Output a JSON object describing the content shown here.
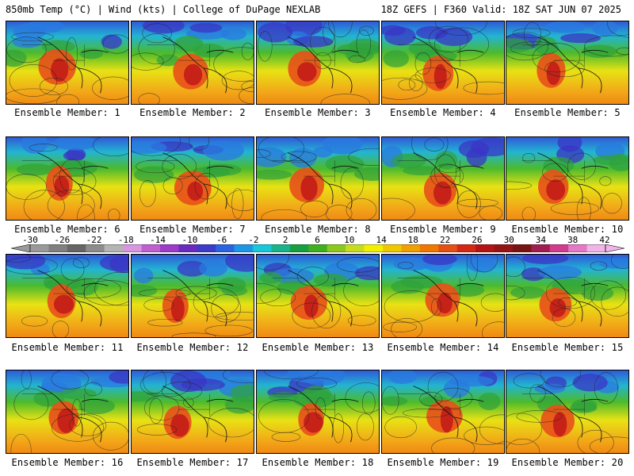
{
  "header": {
    "left": "850mb Temp (°C) | Wind (kts) | College of DuPage NEXLAB",
    "right": "18Z GEFS | F360 Valid: 18Z SAT JUN 07 2025"
  },
  "members": [
    {
      "label": "Ensemble Member: 1"
    },
    {
      "label": "Ensemble Member: 2"
    },
    {
      "label": "Ensemble Member: 3"
    },
    {
      "label": "Ensemble Member: 4"
    },
    {
      "label": "Ensemble Member: 5"
    },
    {
      "label": "Ensemble Member: 6"
    },
    {
      "label": "Ensemble Member: 7"
    },
    {
      "label": "Ensemble Member: 8"
    },
    {
      "label": "Ensemble Member: 9"
    },
    {
      "label": "Ensemble Member: 10"
    },
    {
      "label": "Ensemble Member: 11"
    },
    {
      "label": "Ensemble Member: 12"
    },
    {
      "label": "Ensemble Member: 13"
    },
    {
      "label": "Ensemble Member: 14"
    },
    {
      "label": "Ensemble Member: 15"
    },
    {
      "label": "Ensemble Member: 16"
    },
    {
      "label": "Ensemble Member: 17"
    },
    {
      "label": "Ensemble Member: 18"
    },
    {
      "label": "Ensemble Member: 19"
    },
    {
      "label": "Ensemble Member: 20"
    }
  ],
  "colorbar": {
    "ticks": [
      "-30",
      "-26",
      "-22",
      "-18",
      "-14",
      "-10",
      "-6",
      "-2",
      "2",
      "6",
      "10",
      "14",
      "18",
      "22",
      "26",
      "30",
      "34",
      "38",
      "42"
    ],
    "colors": [
      "#9a9a9a",
      "#808080",
      "#666666",
      "#8c8c8c",
      "#b4b4b4",
      "#d896e0",
      "#c060d0",
      "#9c3cc8",
      "#6a2cc0",
      "#3c3cc8",
      "#2a64e0",
      "#1e96e6",
      "#18c8d8",
      "#1ab48c",
      "#18a040",
      "#40b020",
      "#8cc81e",
      "#c8dc1e",
      "#f0f000",
      "#f0c800",
      "#f0a000",
      "#f07800",
      "#e65014",
      "#d22814",
      "#b41414",
      "#961414",
      "#781414",
      "#a01e50",
      "#d23c8c",
      "#e678c8",
      "#f0b4e6"
    ]
  }
}
